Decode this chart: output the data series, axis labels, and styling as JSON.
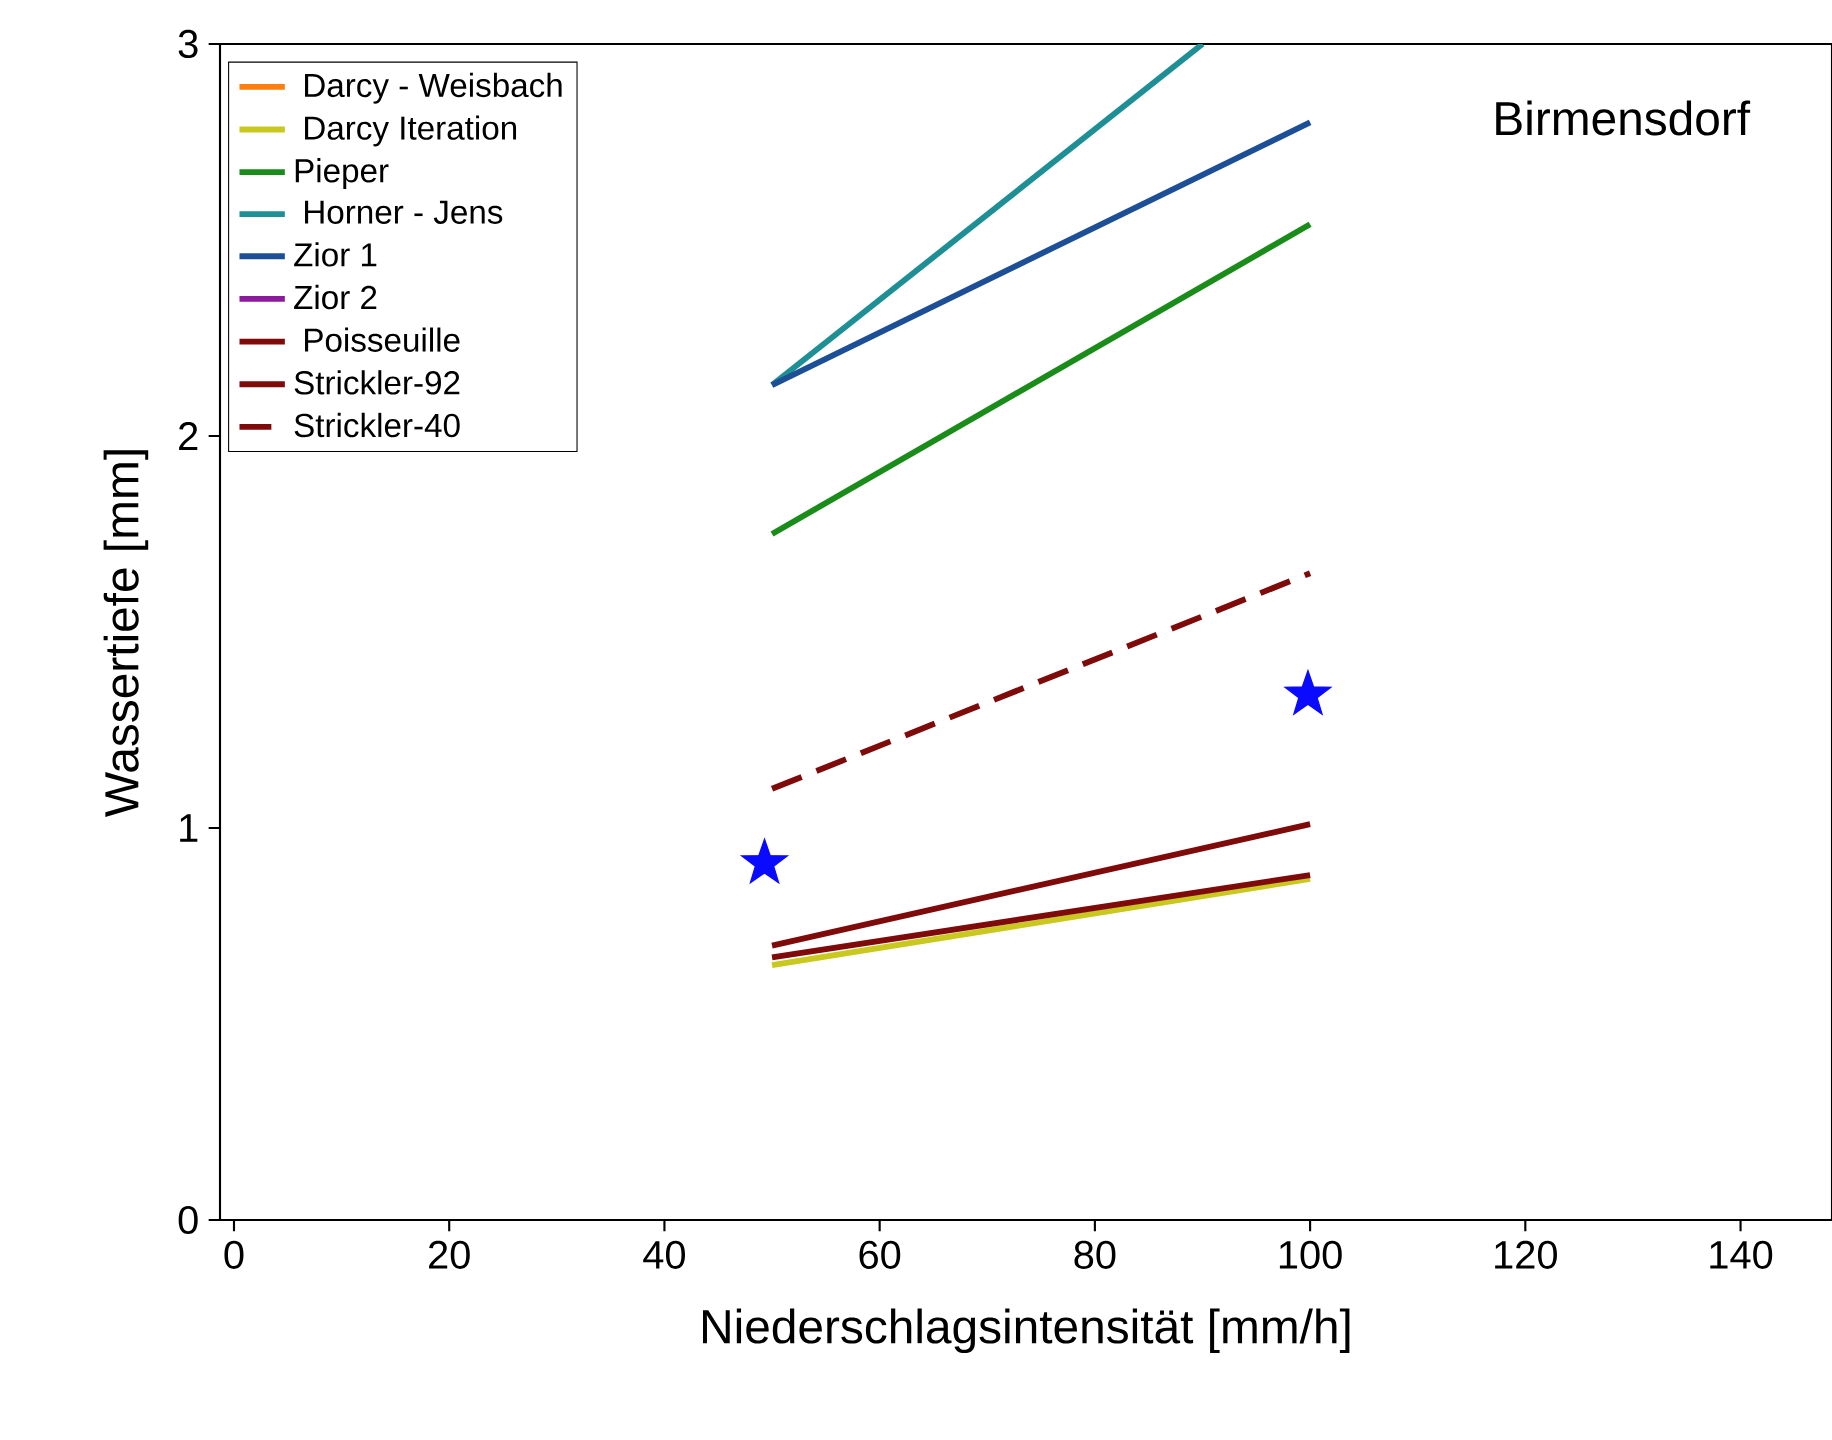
{
  "chart_data": {
    "type": "line",
    "xlabel": "Niederschlagsintensität [mm/h]",
    "ylabel": "Wassertiefe [mm]",
    "annotations": [
      "Birmensdorf"
    ],
    "xlim": [
      -1.3,
      148.5
    ],
    "xticks": [
      0,
      20,
      40,
      60,
      80,
      100,
      120,
      140
    ],
    "ylim": [
      0,
      3
    ],
    "yticks": [
      0,
      1,
      2,
      3
    ],
    "grid": false,
    "legend": "top left",
    "x": [
      50,
      100
    ],
    "series": [
      {
        "name": " Darcy - Weisbach",
        "color": "#ff7f0e",
        "values": [
          null,
          null
        ]
      },
      {
        "name": " Darcy Iteration",
        "color": "#c8c81e",
        "values": [
          0.65,
          0.87
        ]
      },
      {
        "name": "Pieper",
        "color": "#1a8c1a",
        "values": [
          1.75,
          2.54
        ]
      },
      {
        "name": " Horner - Jens",
        "color": "#1f8f96",
        "x": [
          50,
          90
        ],
        "values": [
          2.13,
          3.0
        ]
      },
      {
        "name": "Zior 1",
        "color": "#1c4f96",
        "values": [
          2.13,
          2.8
        ]
      },
      {
        "name": "Zior 2",
        "color": "#8b1a9c",
        "values": [
          null,
          null
        ]
      },
      {
        "name": " Poisseuille",
        "color": "#7f0a0a",
        "values": [
          0.67,
          0.88
        ]
      },
      {
        "name": "Strickler-92",
        "color": "#7f0a0a",
        "values": [
          0.7,
          1.01
        ]
      },
      {
        "name": "Strickler-40",
        "color": "#7f0a0a",
        "line_style": "dashed",
        "values": [
          1.1,
          1.65
        ]
      },
      {
        "type": "scatter",
        "marker": "star",
        "color": "#0a0aff",
        "x": [
          49.3,
          99.8
        ],
        "values": [
          0.91,
          1.34
        ]
      }
    ]
  }
}
